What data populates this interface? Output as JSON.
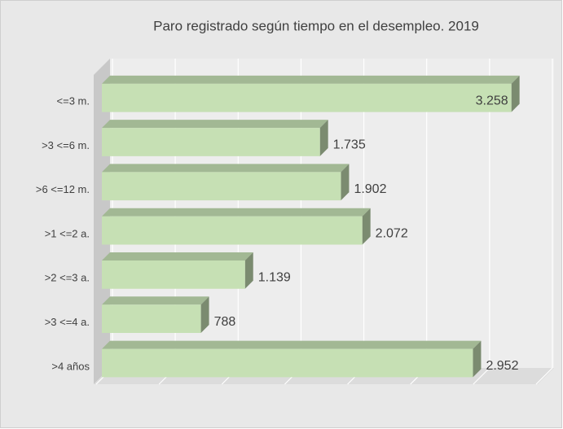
{
  "chart_data": {
    "type": "bar",
    "orientation": "horizontal",
    "title": "Paro registrado según tiempo en el desempleo. 2019",
    "categories": [
      "<=3 m.",
      ">3 <=6 m.",
      ">6 <=12 m.",
      ">1 <=2 a.",
      ">2 <=3 a.",
      ">3 <=4 a.",
      ">4 años"
    ],
    "values": [
      3258,
      1735,
      1902,
      2072,
      1139,
      788,
      2952
    ],
    "value_labels": [
      "3.258",
      "1.735",
      "1.902",
      "2.072",
      "1.139",
      "788",
      "2.952"
    ],
    "color": "#c6e0b4",
    "xlim": [
      0,
      3500
    ],
    "xticks": [
      0,
      500,
      1000,
      1500,
      2000,
      2500,
      3000,
      3500
    ],
    "grid": true
  }
}
